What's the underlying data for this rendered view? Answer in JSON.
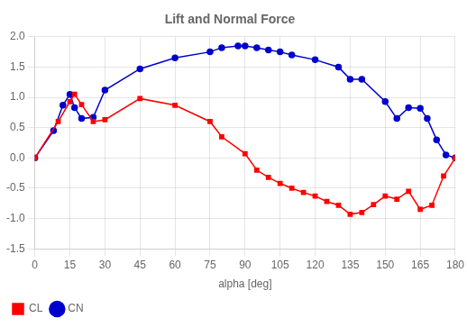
{
  "chart_data": {
    "type": "line",
    "title": "Lift and Normal Force",
    "xlabel": "alpha [deg]",
    "xlim": [
      0,
      180
    ],
    "ylim": [
      -1.5,
      2.0
    ],
    "xticks": [
      0,
      15,
      30,
      45,
      60,
      75,
      90,
      105,
      120,
      135,
      150,
      165,
      180
    ],
    "yticks": [
      -1.5,
      {
        "value": -1.0,
        "label": "-1.0"
      },
      -0.5,
      {
        "value": 0.0,
        "label": "0.0"
      },
      0.5,
      {
        "value": 1.0,
        "label": "1.0"
      },
      1.5,
      {
        "value": 2.0,
        "label": "2.0"
      }
    ],
    "grid": true,
    "legend": "lower left",
    "series": [
      {
        "name": "CL",
        "color": "#FF0000",
        "marker": "square",
        "x": [
          0,
          10,
          15,
          17,
          20,
          25,
          30,
          45,
          60,
          75,
          80,
          90,
          95,
          100,
          105,
          110,
          115,
          120,
          125,
          130,
          135,
          140,
          145,
          150,
          155,
          160,
          165,
          170,
          175,
          180
        ],
        "values": [
          0.0,
          0.6,
          0.93,
          1.05,
          0.88,
          0.6,
          0.63,
          0.98,
          0.87,
          0.6,
          0.35,
          0.07,
          -0.2,
          -0.32,
          -0.42,
          -0.5,
          -0.57,
          -0.63,
          -0.72,
          -0.78,
          -0.93,
          -0.9,
          -0.77,
          -0.63,
          -0.68,
          -0.55,
          -0.85,
          -0.78,
          -0.3,
          0.0
        ]
      },
      {
        "name": "CN",
        "color": "#0000CC",
        "marker": "circle",
        "x": [
          0,
          8,
          12,
          15,
          17,
          20,
          25,
          30,
          45,
          60,
          75,
          80,
          87,
          90,
          95,
          100,
          105,
          110,
          120,
          130,
          135,
          140,
          150,
          155,
          160,
          165,
          168,
          172,
          176,
          180
        ],
        "values": [
          0.0,
          0.45,
          0.87,
          1.05,
          0.83,
          0.65,
          0.67,
          1.12,
          1.47,
          1.65,
          1.75,
          1.82,
          1.85,
          1.85,
          1.82,
          1.78,
          1.75,
          1.7,
          1.62,
          1.5,
          1.3,
          1.3,
          0.93,
          0.65,
          0.83,
          0.82,
          0.65,
          0.3,
          0.05,
          0.0
        ]
      }
    ]
  }
}
